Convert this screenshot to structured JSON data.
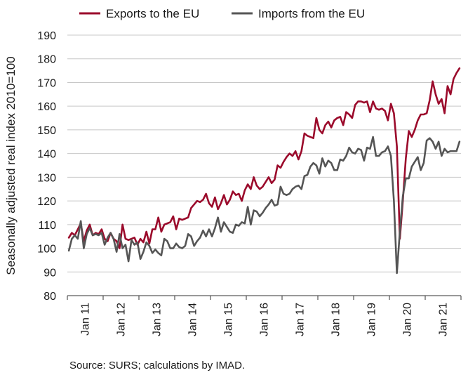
{
  "chart_data": {
    "type": "line",
    "title": "",
    "ylabel": "Seasonally adjusted real index 2010=100",
    "xlabel": "",
    "ylim": [
      80,
      190
    ],
    "yticks": [
      80,
      90,
      100,
      110,
      120,
      130,
      140,
      150,
      160,
      170,
      180,
      190
    ],
    "xticks": [
      "Jan 11",
      "Jan 12",
      "Jan 13",
      "Jan 14",
      "Jan 15",
      "Jan 16",
      "Jan 17",
      "Jan 18",
      "Jan 19",
      "Jan 20",
      "Jan 21"
    ],
    "x_start": "2011-01",
    "x_frequency": "monthly",
    "grid": "horizontal",
    "legend_position": "top",
    "source": "Source: SURS; calculations by IMAD.",
    "colors": {
      "exports": "#9b0a2b",
      "imports": "#555555",
      "grid": "#c8c8c8",
      "axis": "#333333"
    },
    "series": [
      {
        "name": "Exports to the EU",
        "color": "#9b0a2b",
        "values": [
          104.5,
          106.5,
          105.5,
          108,
          110.5,
          103,
          107.5,
          110,
          105.5,
          106.5,
          106,
          108,
          104,
          103,
          106.5,
          104,
          103,
          100,
          110,
          104,
          103.5,
          104,
          104.5,
          101.5,
          104,
          102.5,
          107,
          102,
          108,
          108,
          113,
          107,
          110,
          110.5,
          111,
          113.5,
          108,
          112.5,
          112,
          112.5,
          113,
          117,
          118.5,
          120,
          119.5,
          120.5,
          123,
          119,
          117.5,
          121.5,
          116.5,
          119,
          122.5,
          118.5,
          120.5,
          124,
          122.5,
          123,
          120,
          124.5,
          127,
          125,
          130,
          126.5,
          125,
          126,
          128,
          130,
          127.5,
          129,
          135,
          134,
          136.5,
          138.5,
          140,
          139,
          141,
          137.5,
          141,
          148.5,
          147.5,
          147,
          146.5,
          155,
          150,
          148.5,
          152,
          153.5,
          151,
          154,
          155,
          155.5,
          152,
          157.5,
          156.5,
          155,
          160.5,
          162,
          162,
          161.5,
          162,
          157.5,
          162,
          159,
          158.5,
          159,
          158,
          154,
          161,
          157,
          143,
          104,
          120,
          138,
          149.5,
          147,
          150,
          154,
          156.5,
          156.5,
          157,
          162.5,
          170.5,
          165,
          161,
          163,
          157,
          168.5,
          165,
          171.5,
          174,
          176
        ]
      },
      {
        "name": "Imports from the EU",
        "color": "#555555",
        "values": [
          99,
          104,
          105.5,
          104,
          111.5,
          100,
          106,
          108.5,
          105.5,
          106,
          105.5,
          106.5,
          101.5,
          104.5,
          106.5,
          104,
          98.5,
          106,
          100,
          101.5,
          94.5,
          103.5,
          101.5,
          102.5,
          95.5,
          98.5,
          102.5,
          101,
          98,
          99.5,
          98,
          97,
          104,
          103,
          100,
          100,
          102,
          100.5,
          100,
          101,
          106,
          105,
          101,
          103,
          104.5,
          107.5,
          105,
          108,
          105,
          108.5,
          113,
          107,
          111,
          109,
          107,
          106.5,
          110,
          109.5,
          111,
          110.5,
          117.5,
          110,
          116,
          115.5,
          113.5,
          115,
          117,
          118.5,
          120.5,
          118,
          118.5,
          126,
          123,
          122.5,
          123,
          125,
          126,
          126.5,
          125,
          130.5,
          131,
          134.5,
          136,
          135,
          131.5,
          138,
          134.5,
          137,
          136,
          133,
          133,
          137.5,
          137,
          139,
          142.5,
          140.5,
          140,
          142,
          141.5,
          137,
          142.5,
          142,
          147,
          139,
          139,
          140.5,
          141,
          143,
          139,
          120,
          89.5,
          107,
          122,
          129.5,
          129.5,
          134.5,
          136.5,
          138.5,
          133,
          136,
          145.5,
          146.5,
          145,
          142,
          145,
          139,
          142,
          140.5,
          141,
          141,
          141,
          145
        ]
      }
    ]
  }
}
